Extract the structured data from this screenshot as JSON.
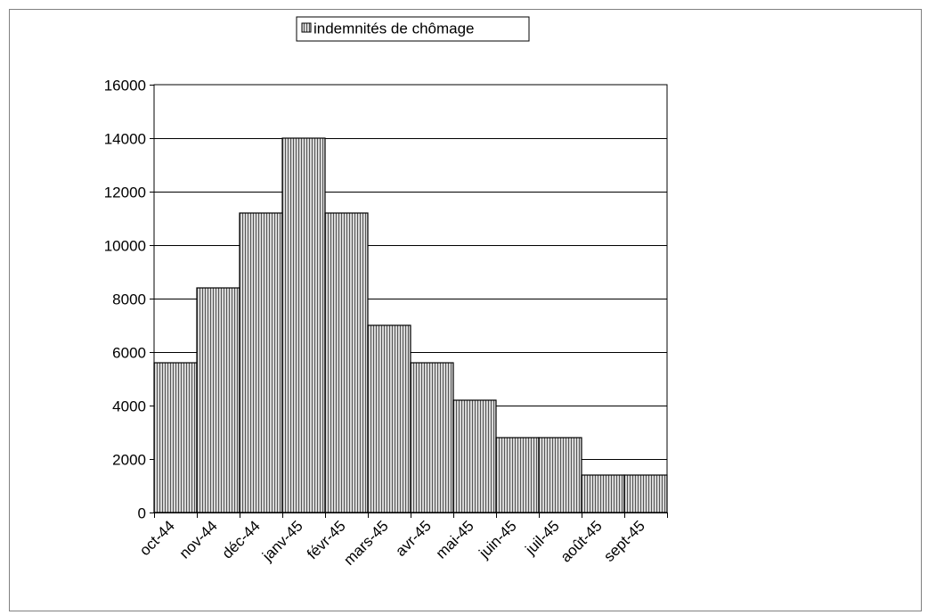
{
  "chart_data": {
    "type": "bar",
    "title": "",
    "xlabel": "",
    "ylabel": "",
    "categories": [
      "oct-44",
      "nov-44",
      "déc-44",
      "janv-45",
      "févr-45",
      "mars-45",
      "avr-45",
      "mai-45",
      "juin-45",
      "juil-45",
      "août-45",
      "sept-45"
    ],
    "series": [
      {
        "name": "indemnités de chômage",
        "values": [
          5600,
          8400,
          11200,
          14000,
          11200,
          7000,
          5600,
          4200,
          2800,
          2800,
          1400,
          1400
        ]
      }
    ],
    "ylim": [
      0,
      16000
    ],
    "yticks": [
      "0",
      "2000",
      "4000",
      "6000",
      "8000",
      "10000",
      "12000",
      "14000",
      "16000"
    ],
    "grid": "horizontal",
    "legend_position": "top",
    "colors": {
      "bar_fill": "#d8d8d8",
      "bar_hatch": "#555555",
      "bar_stroke": "#000000",
      "gridline": "#000000",
      "frame": "#808080"
    }
  }
}
